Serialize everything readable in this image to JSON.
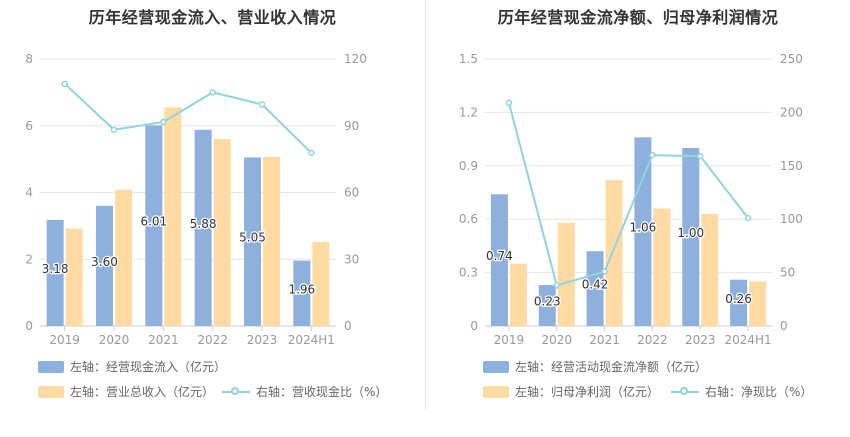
{
  "colors": {
    "bar_blue": "#8eb0dc",
    "bar_orange": "#ffdba3",
    "line": "#8fd4df",
    "grid": "#e6e6e6",
    "axis_text": "#999999"
  },
  "chart_data": [
    {
      "type": "bar",
      "title": "历年经营现金流入、营业收入情况",
      "categories": [
        "2019",
        "2020",
        "2021",
        "2022",
        "2023",
        "2024H1"
      ],
      "left_axis": {
        "ticks": [
          "0",
          "2",
          "4",
          "6",
          "8"
        ],
        "ylim": [
          0,
          8
        ]
      },
      "right_axis": {
        "ticks": [
          "0",
          "30",
          "60",
          "90",
          "120"
        ],
        "ylim": [
          0,
          120
        ]
      },
      "series": [
        {
          "name": "左轴：经营现金流入（亿元）",
          "axis": "left",
          "kind": "bar",
          "color": "#8eb0dc",
          "values": [
            3.18,
            3.6,
            6.01,
            5.88,
            5.05,
            1.96
          ],
          "labels": [
            "3.18",
            "3.60",
            "6.01",
            "5.88",
            "5.05",
            "1.96"
          ]
        },
        {
          "name": "左轴：营业总收入（亿元）",
          "axis": "left",
          "kind": "bar",
          "color": "#ffdba3",
          "values": [
            2.92,
            4.08,
            6.55,
            5.6,
            5.07,
            2.52
          ]
        },
        {
          "name": "右轴：营收现金比（%）",
          "axis": "right",
          "kind": "line",
          "color": "#8fd4df",
          "values": [
            108.9,
            88.2,
            91.7,
            105.0,
            99.6,
            77.8
          ]
        }
      ],
      "grid": true,
      "legend_position": "bottom-left"
    },
    {
      "type": "bar",
      "title": "历年经营现金流净额、归母净利润情况",
      "categories": [
        "2019",
        "2020",
        "2021",
        "2022",
        "2023",
        "2024H1"
      ],
      "left_axis": {
        "ticks": [
          "0",
          "0.3",
          "0.6",
          "0.9",
          "1.2",
          "1.5"
        ],
        "ylim": [
          0,
          1.5
        ]
      },
      "right_axis": {
        "ticks": [
          "0",
          "50",
          "100",
          "150",
          "200",
          "250"
        ],
        "ylim": [
          0,
          250
        ]
      },
      "series": [
        {
          "name": "左轴：经营活动现金流净额（亿元）",
          "axis": "left",
          "kind": "bar",
          "color": "#8eb0dc",
          "values": [
            0.74,
            0.23,
            0.42,
            1.06,
            1.0,
            0.26
          ],
          "labels": [
            "0.74",
            "0.23",
            "0.42",
            "1.06",
            "1.00",
            "0.26"
          ]
        },
        {
          "name": "左轴：归母净利润（亿元）",
          "axis": "left",
          "kind": "bar",
          "color": "#ffdba3",
          "values": [
            0.35,
            0.58,
            0.82,
            0.66,
            0.63,
            0.25
          ]
        },
        {
          "name": "右轴：净现比（%）",
          "axis": "right",
          "kind": "line",
          "color": "#8fd4df",
          "values": [
            209,
            38,
            51,
            160,
            159,
            101
          ]
        }
      ],
      "grid": true,
      "legend_position": "bottom-left"
    }
  ]
}
